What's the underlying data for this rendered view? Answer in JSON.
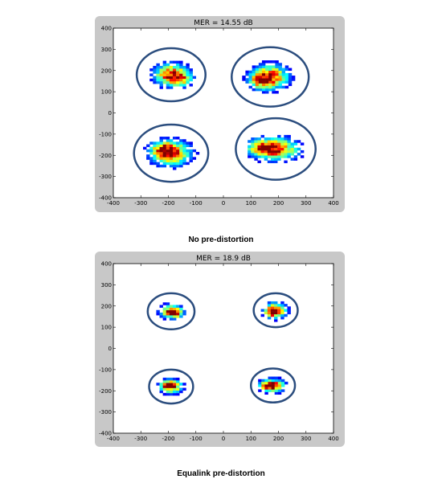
{
  "chart_data": [
    {
      "type": "scatter",
      "subtype": "constellation-density",
      "title": "MER = 14.55 dB",
      "caption": "No pre-distortion",
      "xlabel": "",
      "ylabel": "",
      "xlim": [
        -400,
        400
      ],
      "ylim": [
        -400,
        400
      ],
      "xticks": [
        -400,
        -300,
        -200,
        -100,
        0,
        100,
        200,
        300,
        400
      ],
      "yticks": [
        400,
        300,
        200,
        100,
        0,
        -100,
        -200,
        -300,
        -400
      ],
      "grid": false,
      "colormap": "jet",
      "clusters": [
        {
          "center": [
            -190,
            180
          ],
          "circle_radius": 125,
          "spread": [
            70,
            60
          ],
          "skew": [
            40,
            -20
          ]
        },
        {
          "center": [
            170,
            170
          ],
          "circle_radius": 140,
          "spread": [
            75,
            65
          ],
          "skew": [
            -40,
            -20
          ]
        },
        {
          "center": [
            -190,
            -190
          ],
          "circle_radius": 135,
          "spread": [
            80,
            65
          ],
          "skew": [
            -30,
            20
          ]
        },
        {
          "center": [
            190,
            -170
          ],
          "circle_radius": 145,
          "spread": [
            95,
            60
          ],
          "skew": [
            -60,
            10
          ]
        }
      ],
      "circle_color": "#2b4d7e"
    },
    {
      "type": "scatter",
      "subtype": "constellation-density",
      "title": "MER = 18.9 dB",
      "caption": "Equalink  pre-distortion",
      "xlabel": "",
      "ylabel": "",
      "xlim": [
        -400,
        400
      ],
      "ylim": [
        -400,
        400
      ],
      "xticks": [
        -400,
        -300,
        -200,
        -100,
        0,
        100,
        200,
        300,
        400
      ],
      "yticks": [
        400,
        300,
        200,
        100,
        0,
        -100,
        -200,
        -300,
        -400
      ],
      "grid": false,
      "colormap": "jet",
      "clusters": [
        {
          "center": [
            -190,
            175
          ],
          "circle_radius": 85,
          "spread": [
            45,
            35
          ],
          "skew": [
            20,
            -10
          ]
        },
        {
          "center": [
            190,
            180
          ],
          "circle_radius": 80,
          "spread": [
            45,
            40
          ],
          "skew": [
            -15,
            -10
          ]
        },
        {
          "center": [
            -190,
            -180
          ],
          "circle_radius": 80,
          "spread": [
            45,
            35
          ],
          "skew": [
            -10,
            10
          ]
        },
        {
          "center": [
            180,
            -175
          ],
          "circle_radius": 80,
          "spread": [
            50,
            35
          ],
          "skew": [
            -20,
            0
          ]
        }
      ],
      "circle_color": "#2b4d7e"
    }
  ]
}
